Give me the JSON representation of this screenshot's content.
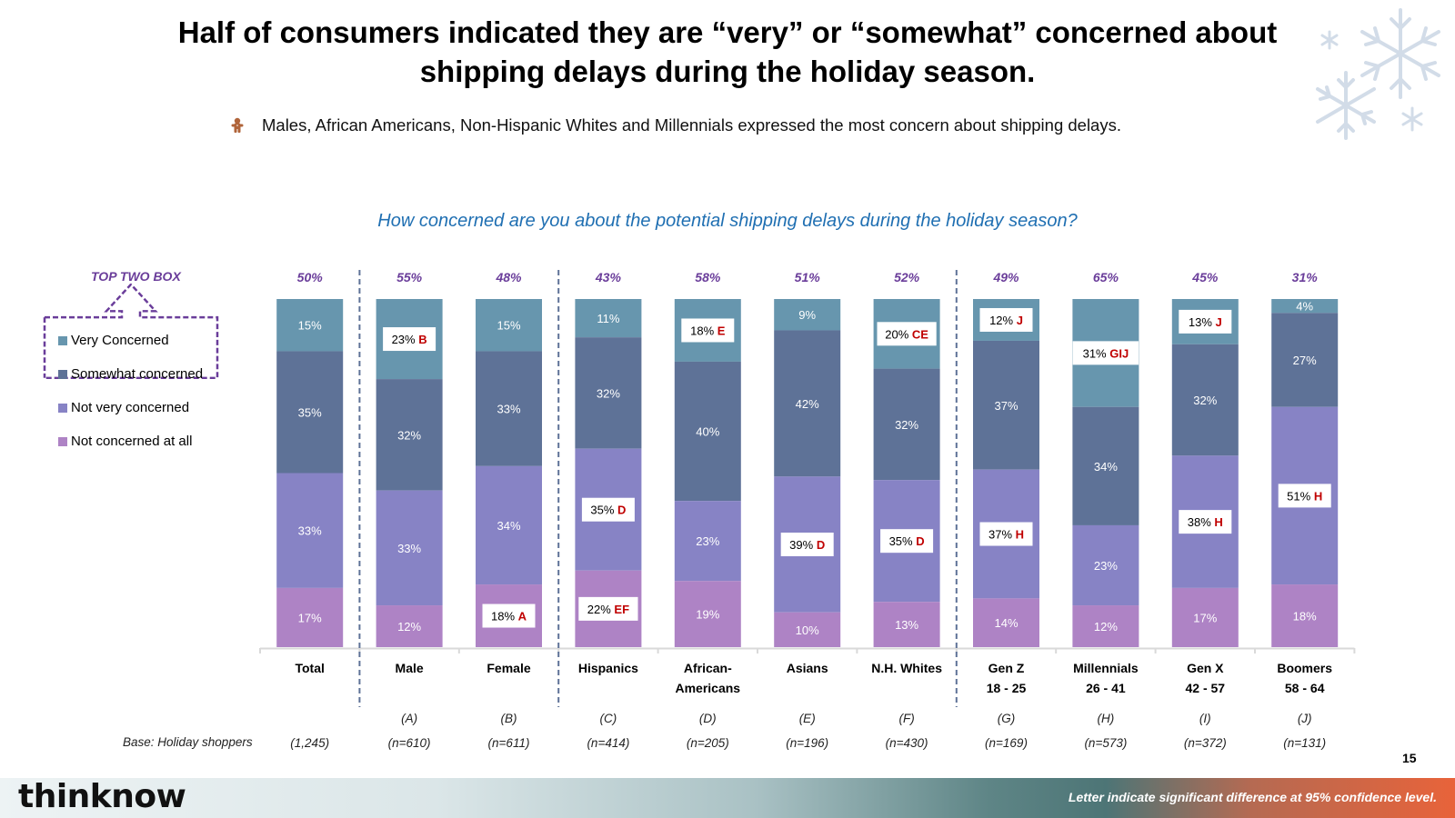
{
  "slide": {
    "title_line1": "Half of consumers indicated they are “very” or “somewhat” concerned about",
    "title_line2": "shipping delays during the holiday season.",
    "bullet_icon": "gingerbread-man-icon",
    "bullet_text": "Males, African Americans, Non-Hispanic Whites and Millennials expressed the most concern about shipping delays.",
    "decoration_icon": "snowflakes-icon",
    "question": "How concerned are you about the potential shipping delays during the holiday season?",
    "base_label": "Base: Holiday shoppers",
    "page_number": "15",
    "footer_logo": "thinknow",
    "footer_note": "Letter indicate significant difference at 95% confidence level."
  },
  "chart_data": {
    "type": "bar",
    "stacked": true,
    "percent": true,
    "title": "How concerned are you about the potential shipping delays during the holiday season?",
    "xlabel": "",
    "ylabel": "",
    "ylim": [
      0,
      100
    ],
    "legend_title": "TOP TWO BOX",
    "legend_position": "left",
    "categories": [
      {
        "name": "Total",
        "name2": "",
        "letter": "",
        "n": "(1,245)"
      },
      {
        "name": "Male",
        "name2": "",
        "letter": "(A)",
        "n": "(n=610)"
      },
      {
        "name": "Female",
        "name2": "",
        "letter": "(B)",
        "n": "(n=611)"
      },
      {
        "name": "Hispanics",
        "name2": "",
        "letter": "(C)",
        "n": "(n=414)"
      },
      {
        "name": "African-",
        "name2": "Americans",
        "letter": "(D)",
        "n": "(n=205)"
      },
      {
        "name": "Asians",
        "name2": "",
        "letter": "(E)",
        "n": "(n=196)"
      },
      {
        "name": "N.H. Whites",
        "name2": "",
        "letter": "(F)",
        "n": "(n=430)"
      },
      {
        "name": "Gen Z",
        "name2": "18 - 25",
        "letter": "(G)",
        "n": "(n=169)"
      },
      {
        "name": "Millennials",
        "name2": "26 - 41",
        "letter": "(H)",
        "n": "(n=573)"
      },
      {
        "name": "Gen X",
        "name2": "42 - 57",
        "letter": "(I)",
        "n": "(n=372)"
      },
      {
        "name": "Boomers",
        "name2": "58 - 64",
        "letter": "(J)",
        "n": "(n=131)"
      }
    ],
    "top_two_box": [
      "50%",
      "55%",
      "48%",
      "43%",
      "58%",
      "51%",
      "52%",
      "49%",
      "65%",
      "45%",
      "31%"
    ],
    "group_dividers_after": [
      0,
      2,
      6
    ],
    "series": [
      {
        "name": "Very Concerned",
        "color": "#6796ae",
        "values": [
          15,
          23,
          15,
          11,
          18,
          9,
          20,
          12,
          31,
          13,
          4
        ],
        "sig": [
          "",
          "B",
          "",
          "",
          "E",
          "",
          "CE",
          "J",
          "GIJ",
          "J",
          ""
        ]
      },
      {
        "name": "Somewhat concerned",
        "color": "#5e7297",
        "values": [
          35,
          32,
          33,
          32,
          40,
          42,
          32,
          37,
          34,
          32,
          27
        ],
        "sig": [
          "",
          "",
          "",
          "",
          "",
          "",
          "",
          "",
          "",
          "",
          ""
        ]
      },
      {
        "name": "Not very concerned",
        "color": "#8783c5",
        "values": [
          33,
          33,
          34,
          35,
          23,
          39,
          35,
          37,
          23,
          38,
          51
        ],
        "sig": [
          "",
          "",
          "",
          "D",
          "",
          "D",
          "D",
          "H",
          "",
          "H",
          "H"
        ]
      },
      {
        "name": "Not concerned at all",
        "color": "#ae83c5",
        "values": [
          17,
          12,
          18,
          22,
          19,
          10,
          13,
          14,
          12,
          17,
          18
        ],
        "sig": [
          "",
          "",
          "A",
          "EF",
          "",
          "",
          "",
          "",
          "",
          "",
          ""
        ]
      }
    ]
  }
}
